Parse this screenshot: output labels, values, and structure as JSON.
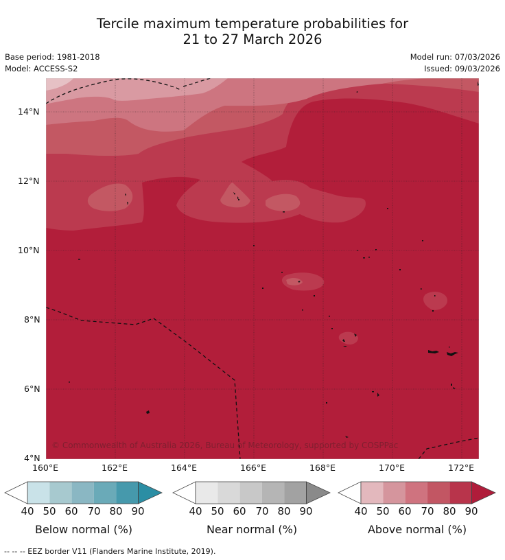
{
  "title_line1": "Tercile maximum temperature probabilities for",
  "title_line2": "21 to 27 March 2026",
  "base_period": "Base period: 1981-2018",
  "model": "Model: ACCESS-S2",
  "model_run": "Model run: 07/03/2026",
  "issued": "Issued: 09/03/2026",
  "lat_ticks": [
    "14°N",
    "12°N",
    "10°N",
    "8°N",
    "6°N",
    "4°N"
  ],
  "lon_ticks": [
    "160°E",
    "162°E",
    "164°E",
    "166°E",
    "168°E",
    "170°E",
    "172°E"
  ],
  "copyright": "© Commonwealth of Australia 2026, Bureau of Meteorology, supported by COSPPac",
  "colorbars": [
    {
      "label": "Below normal (%)",
      "ticks": [
        "40",
        "50",
        "60",
        "70",
        "80",
        "90"
      ],
      "colors": [
        "#ffffff",
        "#c9e2e8",
        "#a7c9cf",
        "#8ab7c3",
        "#6aaab8",
        "#4699ac",
        "#2b8ea4"
      ]
    },
    {
      "label": "Near normal (%)",
      "ticks": [
        "40",
        "50",
        "60",
        "70",
        "80",
        "90"
      ],
      "colors": [
        "#ffffff",
        "#e9e9e9",
        "#d9d9d9",
        "#c8c8c8",
        "#b5b5b5",
        "#a2a2a2",
        "#8a8a8a"
      ]
    },
    {
      "label": "Above normal (%)",
      "ticks": [
        "40",
        "50",
        "60",
        "70",
        "80",
        "90"
      ],
      "colors": [
        "#ffffff",
        "#e3b8bd",
        "#d5959d",
        "#cf737f",
        "#c25663",
        "#b8344b",
        "#b01c3a"
      ]
    }
  ],
  "footnote": "--  --  -- EEZ border V11 (Flanders Marine Institute, 2019).",
  "map_colors": {
    "p90": "#b21e3a",
    "p80": "#bb3a4f",
    "p70": "#c35863",
    "p60": "#cd7580",
    "p50": "#d99aa2",
    "p40": "#e6c1c5"
  }
}
